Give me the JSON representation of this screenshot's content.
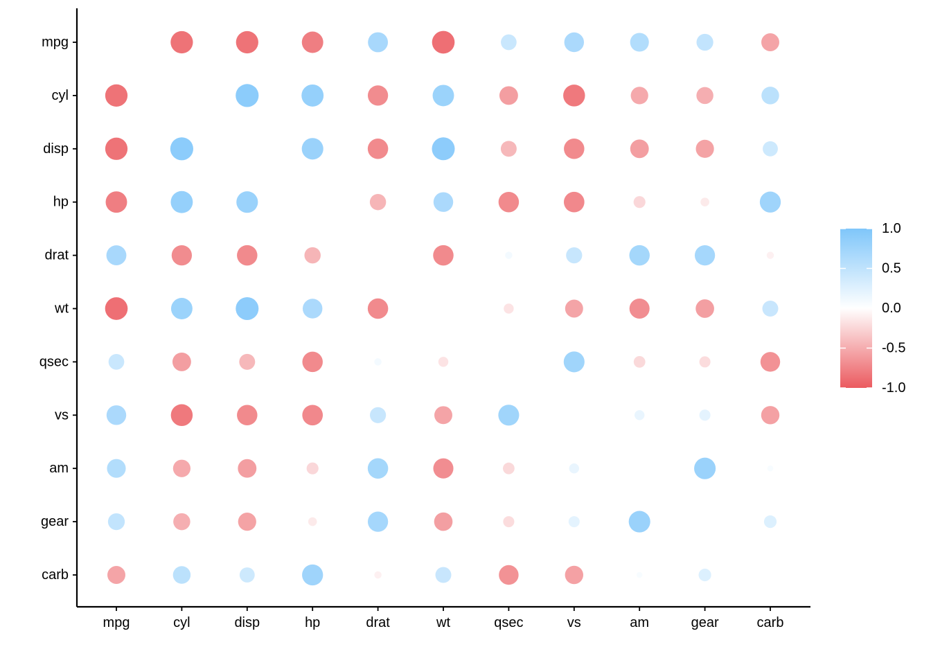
{
  "chart_data": {
    "type": "scatter",
    "subtype": "correlation-dot-matrix",
    "variables": [
      "mpg",
      "cyl",
      "disp",
      "hp",
      "drat",
      "wt",
      "qsec",
      "vs",
      "am",
      "gear",
      "carb"
    ],
    "x_categories": [
      "mpg",
      "cyl",
      "disp",
      "hp",
      "drat",
      "wt",
      "qsec",
      "vs",
      "am",
      "gear",
      "carb"
    ],
    "y_categories": [
      "mpg",
      "cyl",
      "disp",
      "hp",
      "drat",
      "wt",
      "qsec",
      "vs",
      "am",
      "gear",
      "carb"
    ],
    "matrix": [
      [
        null,
        -0.85,
        -0.85,
        -0.78,
        0.68,
        -0.87,
        0.42,
        0.66,
        0.6,
        0.48,
        -0.55
      ],
      [
        -0.85,
        null,
        0.9,
        0.83,
        -0.7,
        0.78,
        -0.59,
        -0.81,
        -0.52,
        -0.49,
        0.53
      ],
      [
        -0.85,
        0.9,
        null,
        0.79,
        -0.71,
        0.89,
        -0.43,
        -0.71,
        -0.59,
        -0.56,
        0.39
      ],
      [
        -0.78,
        0.83,
        0.79,
        null,
        -0.45,
        0.66,
        -0.71,
        -0.72,
        -0.24,
        -0.13,
        0.75
      ],
      [
        0.68,
        -0.7,
        -0.71,
        -0.45,
        null,
        -0.71,
        0.09,
        0.44,
        0.71,
        0.7,
        -0.09
      ],
      [
        -0.87,
        0.78,
        0.89,
        0.66,
        -0.71,
        null,
        -0.17,
        -0.55,
        -0.69,
        -0.58,
        0.43
      ],
      [
        0.42,
        -0.59,
        -0.43,
        -0.71,
        0.09,
        -0.17,
        null,
        0.74,
        -0.23,
        -0.21,
        -0.66
      ],
      [
        0.66,
        -0.81,
        -0.71,
        -0.72,
        0.44,
        -0.55,
        0.74,
        null,
        0.17,
        0.21,
        -0.57
      ],
      [
        0.6,
        -0.52,
        -0.59,
        -0.24,
        0.71,
        -0.69,
        -0.23,
        0.17,
        null,
        0.79,
        0.06
      ],
      [
        0.48,
        -0.49,
        -0.56,
        -0.13,
        0.7,
        -0.58,
        -0.21,
        0.21,
        0.79,
        null,
        0.27
      ],
      [
        -0.55,
        0.53,
        0.39,
        0.75,
        -0.09,
        0.43,
        -0.66,
        -0.57,
        0.06,
        0.27,
        null
      ]
    ],
    "legend": {
      "position": "right",
      "ticks": [
        "1.0",
        "0.5",
        "0.0",
        "-0.5",
        "-1.0"
      ],
      "tick_values": [
        1.0,
        0.5,
        0.0,
        -0.5,
        -1.0
      ],
      "range": [
        -1,
        1
      ]
    },
    "colors": {
      "positive": "#7fc6fa",
      "zero": "#ffffff",
      "negative": "#eb5a5f"
    },
    "grid": false,
    "xlabel": "",
    "ylabel": ""
  }
}
